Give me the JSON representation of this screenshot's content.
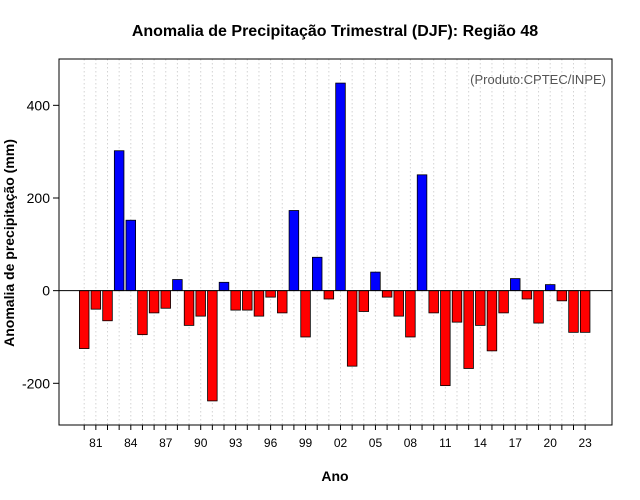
{
  "chart_data": {
    "type": "bar",
    "title": "Anomalia de Precipitação Trimestral (DJF): Região 48",
    "xlabel": "Ano",
    "ylabel": "Anomalia de precipitação (mm)",
    "annotation": "(Produto:CPTEC/INPE)",
    "ylim": [
      -290,
      500
    ],
    "yticks": [
      -200,
      0,
      200,
      400
    ],
    "grid": true,
    "positive_color": "#0000ff",
    "negative_color": "#ff0000",
    "categories": [
      "80",
      "81",
      "82",
      "83",
      "84",
      "85",
      "86",
      "87",
      "88",
      "89",
      "90",
      "91",
      "92",
      "93",
      "94",
      "95",
      "96",
      "97",
      "98",
      "99",
      "00",
      "01",
      "02",
      "03",
      "04",
      "05",
      "06",
      "07",
      "08",
      "09",
      "10",
      "11",
      "12",
      "13",
      "14",
      "15",
      "16",
      "17",
      "18",
      "19",
      "20",
      "21",
      "22",
      "23"
    ],
    "xtick_labels": [
      "81",
      "84",
      "87",
      "90",
      "93",
      "96",
      "99",
      "02",
      "05",
      "08",
      "11",
      "14",
      "17",
      "20",
      "23"
    ],
    "values": [
      -125,
      -40,
      -65,
      302,
      152,
      -95,
      -48,
      -38,
      24,
      -75,
      -55,
      -238,
      18,
      -42,
      -42,
      -55,
      -14,
      -48,
      173,
      -100,
      72,
      -18,
      448,
      -163,
      -45,
      40,
      -14,
      -55,
      -100,
      250,
      -48,
      -205,
      -68,
      -168,
      -75,
      -130,
      -48,
      26,
      -18,
      -70,
      13,
      -22,
      -90,
      -90
    ]
  }
}
